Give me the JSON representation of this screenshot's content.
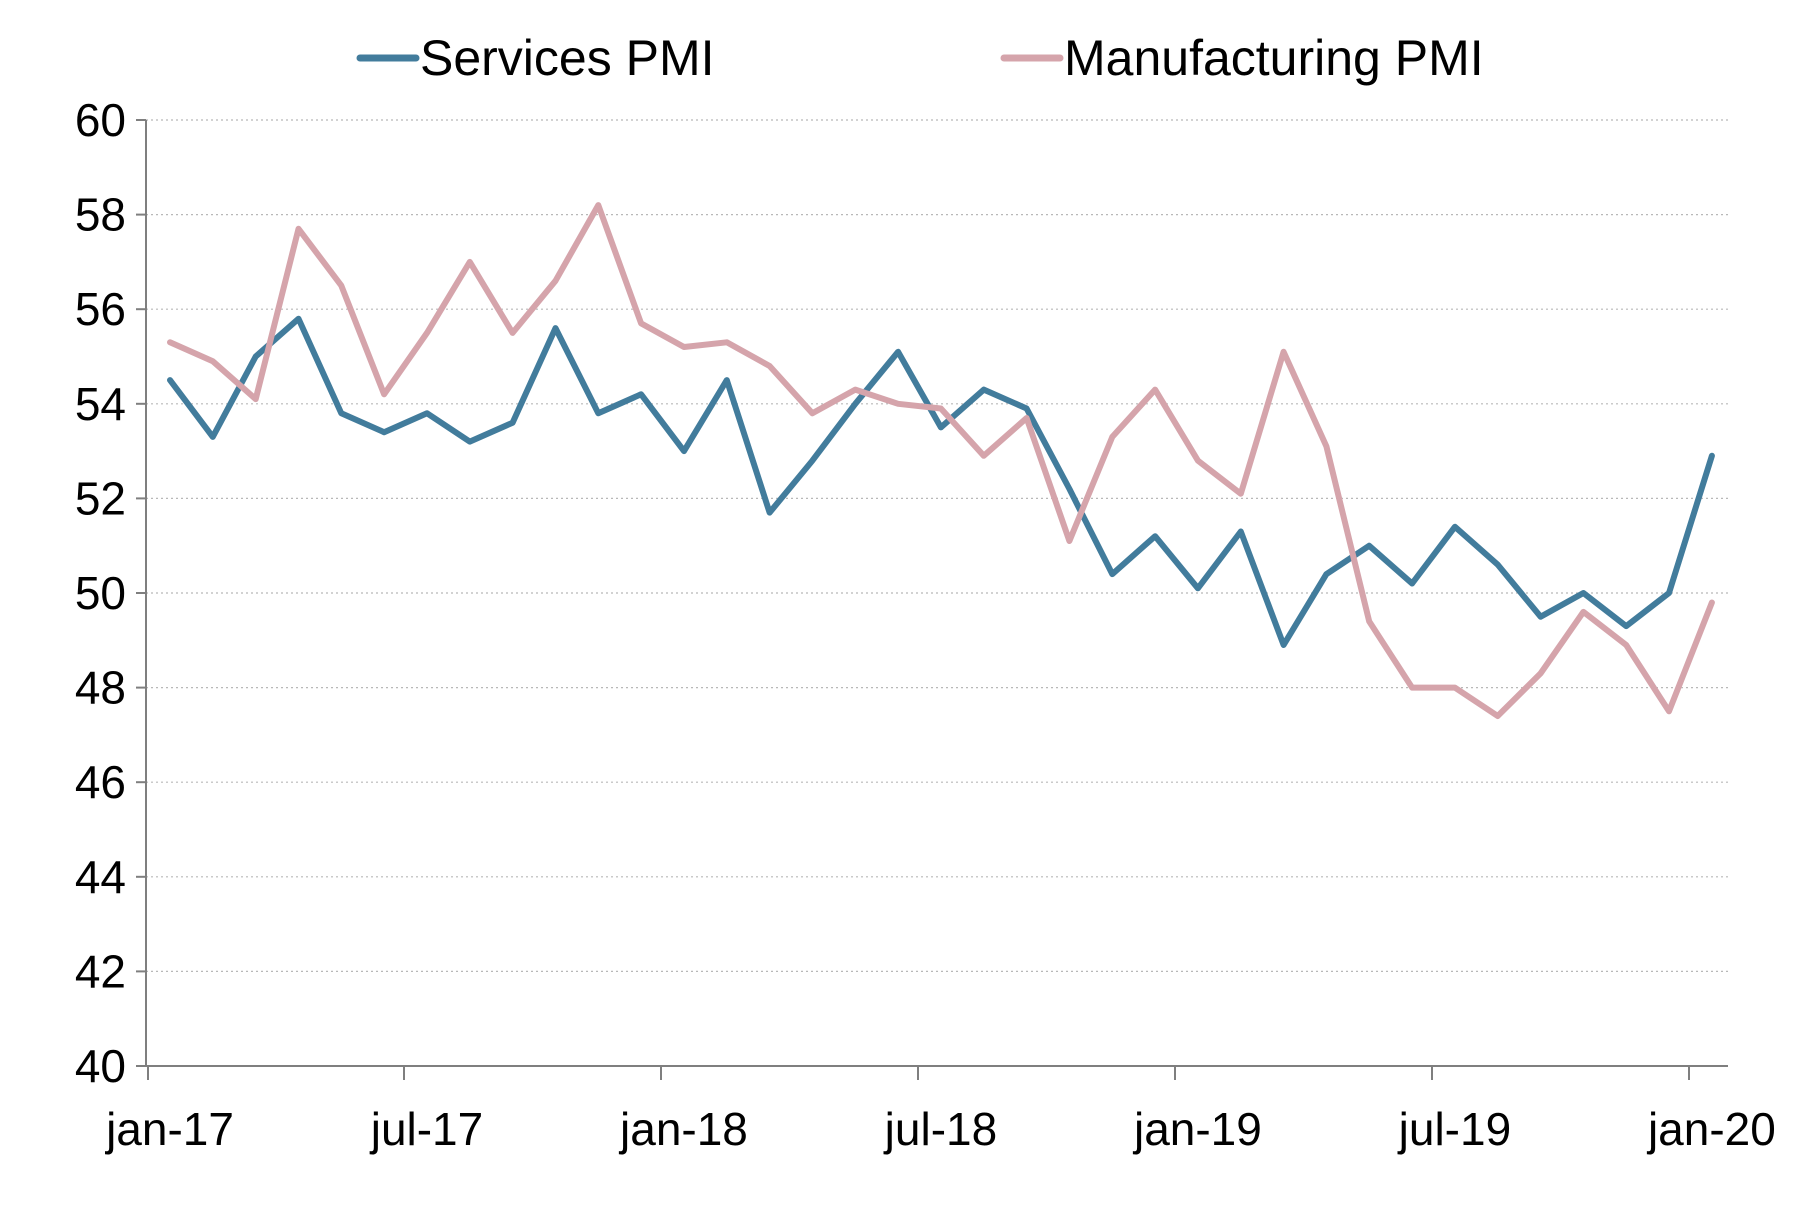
{
  "chart_data": {
    "type": "line",
    "title": "",
    "xlabel": "",
    "ylabel": "",
    "ylim": [
      40,
      60
    ],
    "yticks": [
      40,
      42,
      44,
      46,
      48,
      50,
      52,
      54,
      56,
      58,
      60
    ],
    "xticks": [
      {
        "label": "jan-17",
        "index": 0
      },
      {
        "label": "jul-17",
        "index": 6
      },
      {
        "label": "jan-18",
        "index": 12
      },
      {
        "label": "jul-18",
        "index": 18
      },
      {
        "label": "jan-19",
        "index": 24
      },
      {
        "label": "jul-19",
        "index": 30
      },
      {
        "label": "jan-20",
        "index": 36
      }
    ],
    "grid": "horizontal",
    "legend": "top",
    "series": [
      {
        "name": "Services PMI",
        "color": "#427c9c",
        "values": [
          54.5,
          53.3,
          55.0,
          55.8,
          53.8,
          53.4,
          53.8,
          53.2,
          53.6,
          55.6,
          53.8,
          54.2,
          53.0,
          54.5,
          51.7,
          52.8,
          54.0,
          55.1,
          53.5,
          54.3,
          53.9,
          52.2,
          50.4,
          51.2,
          50.1,
          51.3,
          48.9,
          50.4,
          51.0,
          50.2,
          51.4,
          50.6,
          49.5,
          50.0,
          49.3,
          50.0,
          52.9
        ]
      },
      {
        "name": "Manufacturing PMI",
        "color": "#d5a4ab",
        "values": [
          55.3,
          54.9,
          54.1,
          57.7,
          56.5,
          54.2,
          55.5,
          57.0,
          55.5,
          56.6,
          58.2,
          55.7,
          55.2,
          55.3,
          54.8,
          53.8,
          54.3,
          54.0,
          53.9,
          52.9,
          53.7,
          51.1,
          53.3,
          54.3,
          52.8,
          52.1,
          55.1,
          53.1,
          49.4,
          48.0,
          48.0,
          47.4,
          48.3,
          49.6,
          48.9,
          47.5,
          49.8
        ]
      }
    ]
  }
}
